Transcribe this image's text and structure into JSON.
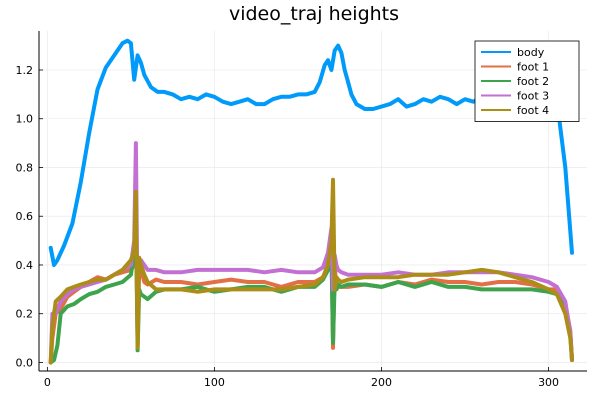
{
  "chart_data": {
    "type": "line",
    "title": "video_traj heights",
    "xlabel": "",
    "ylabel": "",
    "xlim": [
      -5,
      323
    ],
    "ylim": [
      -0.035,
      1.36
    ],
    "x_ticks": [
      0,
      100,
      200,
      300
    ],
    "y_ticks": [
      0.0,
      0.2,
      0.4,
      0.6,
      0.8,
      1.0,
      1.2
    ],
    "x_tick_labels": [
      "0",
      "100",
      "200",
      "300"
    ],
    "y_tick_labels": [
      "0.0",
      "0.2",
      "0.4",
      "0.6",
      "0.8",
      "1.0",
      "1.2"
    ],
    "grid": true,
    "legend_position": "top-right",
    "series": [
      {
        "name": "body",
        "color": "#009AFA",
        "x": [
          2,
          4,
          6,
          10,
          15,
          20,
          25,
          30,
          35,
          40,
          45,
          48,
          50,
          52,
          54,
          56,
          58,
          62,
          66,
          70,
          75,
          80,
          85,
          90,
          95,
          100,
          105,
          110,
          115,
          120,
          125,
          130,
          135,
          140,
          145,
          150,
          155,
          160,
          163,
          166,
          168,
          170,
          172,
          174,
          176,
          178,
          180,
          182,
          185,
          190,
          195,
          200,
          205,
          210,
          215,
          220,
          225,
          230,
          235,
          240,
          245,
          250,
          255,
          260,
          265,
          270,
          275,
          280,
          285,
          290,
          295,
          300,
          303,
          306,
          310,
          314
        ],
        "y": [
          0.47,
          0.4,
          0.42,
          0.48,
          0.57,
          0.74,
          0.94,
          1.12,
          1.21,
          1.26,
          1.31,
          1.32,
          1.31,
          1.16,
          1.26,
          1.23,
          1.18,
          1.13,
          1.11,
          1.11,
          1.1,
          1.08,
          1.09,
          1.08,
          1.1,
          1.09,
          1.07,
          1.06,
          1.07,
          1.08,
          1.06,
          1.06,
          1.08,
          1.09,
          1.09,
          1.1,
          1.1,
          1.11,
          1.15,
          1.22,
          1.24,
          1.2,
          1.28,
          1.3,
          1.27,
          1.2,
          1.15,
          1.1,
          1.06,
          1.04,
          1.04,
          1.05,
          1.06,
          1.08,
          1.05,
          1.06,
          1.08,
          1.07,
          1.09,
          1.08,
          1.06,
          1.08,
          1.07,
          1.09,
          1.07,
          1.06,
          1.07,
          1.06,
          1.05,
          1.06,
          1.06,
          1.07,
          1.06,
          1.02,
          0.8,
          0.45
        ]
      },
      {
        "name": "foot 1",
        "color": "#E26F46",
        "x": [
          2,
          3,
          5,
          8,
          12,
          16,
          20,
          25,
          30,
          35,
          40,
          45,
          50,
          52,
          53,
          54,
          55,
          56,
          58,
          60,
          65,
          70,
          80,
          90,
          100,
          110,
          120,
          130,
          140,
          150,
          160,
          165,
          168,
          170,
          171,
          172,
          173,
          174,
          176,
          180,
          190,
          200,
          210,
          220,
          230,
          240,
          250,
          260,
          270,
          280,
          290,
          300,
          305,
          310,
          313,
          314
        ],
        "y": [
          0.0,
          0.1,
          0.2,
          0.22,
          0.27,
          0.29,
          0.31,
          0.33,
          0.35,
          0.34,
          0.36,
          0.37,
          0.38,
          0.4,
          0.6,
          0.1,
          0.4,
          0.38,
          0.33,
          0.32,
          0.34,
          0.33,
          0.33,
          0.32,
          0.33,
          0.34,
          0.33,
          0.33,
          0.31,
          0.33,
          0.33,
          0.35,
          0.4,
          0.5,
          0.06,
          0.4,
          0.3,
          0.31,
          0.31,
          0.31,
          0.32,
          0.31,
          0.33,
          0.32,
          0.34,
          0.33,
          0.33,
          0.32,
          0.33,
          0.33,
          0.32,
          0.3,
          0.3,
          0.24,
          0.13,
          0.01
        ]
      },
      {
        "name": "foot 2",
        "color": "#3DA44D",
        "x": [
          2,
          4,
          6,
          8,
          12,
          16,
          20,
          25,
          30,
          35,
          40,
          45,
          50,
          52,
          53,
          54,
          55,
          56,
          58,
          60,
          65,
          70,
          80,
          90,
          100,
          110,
          120,
          130,
          140,
          150,
          160,
          165,
          168,
          170,
          171,
          172,
          173,
          174,
          176,
          180,
          190,
          200,
          210,
          220,
          230,
          240,
          250,
          260,
          270,
          280,
          290,
          300,
          305,
          310,
          313,
          314
        ],
        "y": [
          0.0,
          0.01,
          0.07,
          0.2,
          0.23,
          0.24,
          0.26,
          0.28,
          0.29,
          0.31,
          0.32,
          0.33,
          0.36,
          0.45,
          0.6,
          0.05,
          0.3,
          0.28,
          0.27,
          0.26,
          0.29,
          0.3,
          0.3,
          0.31,
          0.29,
          0.3,
          0.31,
          0.31,
          0.29,
          0.31,
          0.31,
          0.34,
          0.38,
          0.45,
          0.08,
          0.33,
          0.3,
          0.32,
          0.31,
          0.32,
          0.32,
          0.31,
          0.33,
          0.31,
          0.33,
          0.31,
          0.31,
          0.3,
          0.3,
          0.3,
          0.3,
          0.29,
          0.28,
          0.24,
          0.12,
          0.01
        ]
      },
      {
        "name": "foot 3",
        "color": "#C271D2",
        "x": [
          2,
          3,
          5,
          8,
          12,
          16,
          20,
          25,
          30,
          35,
          40,
          45,
          50,
          52,
          53,
          54,
          55,
          56,
          58,
          60,
          65,
          70,
          80,
          90,
          100,
          110,
          120,
          130,
          140,
          150,
          160,
          165,
          168,
          170,
          171,
          172,
          173,
          174,
          176,
          180,
          190,
          200,
          210,
          220,
          230,
          240,
          250,
          260,
          270,
          280,
          290,
          300,
          305,
          310,
          313,
          314
        ],
        "y": [
          0.0,
          0.2,
          0.2,
          0.25,
          0.28,
          0.3,
          0.31,
          0.32,
          0.33,
          0.34,
          0.36,
          0.38,
          0.4,
          0.5,
          0.9,
          0.2,
          0.42,
          0.42,
          0.4,
          0.38,
          0.38,
          0.37,
          0.37,
          0.38,
          0.38,
          0.38,
          0.38,
          0.37,
          0.38,
          0.37,
          0.37,
          0.39,
          0.45,
          0.55,
          0.3,
          0.44,
          0.4,
          0.38,
          0.37,
          0.36,
          0.36,
          0.36,
          0.37,
          0.36,
          0.36,
          0.37,
          0.37,
          0.37,
          0.37,
          0.36,
          0.35,
          0.33,
          0.31,
          0.25,
          0.12,
          0.01
        ]
      },
      {
        "name": "foot 4",
        "color": "#AC8D18",
        "x": [
          2,
          3,
          5,
          8,
          12,
          16,
          20,
          25,
          30,
          35,
          40,
          45,
          50,
          52,
          53,
          54,
          55,
          56,
          58,
          60,
          65,
          70,
          80,
          90,
          100,
          110,
          120,
          130,
          140,
          150,
          160,
          165,
          168,
          170,
          171,
          172,
          173,
          174,
          176,
          180,
          190,
          200,
          210,
          220,
          230,
          240,
          250,
          260,
          270,
          280,
          290,
          300,
          305,
          310,
          313,
          314
        ],
        "y": [
          0.0,
          0.15,
          0.25,
          0.27,
          0.3,
          0.31,
          0.32,
          0.33,
          0.34,
          0.34,
          0.36,
          0.38,
          0.42,
          0.46,
          0.7,
          0.06,
          0.43,
          0.4,
          0.36,
          0.33,
          0.3,
          0.3,
          0.3,
          0.29,
          0.3,
          0.3,
          0.3,
          0.3,
          0.3,
          0.31,
          0.32,
          0.35,
          0.4,
          0.5,
          0.75,
          0.3,
          0.35,
          0.34,
          0.33,
          0.34,
          0.35,
          0.35,
          0.35,
          0.36,
          0.36,
          0.36,
          0.37,
          0.38,
          0.37,
          0.35,
          0.33,
          0.3,
          0.28,
          0.2,
          0.1,
          0.01
        ]
      }
    ]
  }
}
